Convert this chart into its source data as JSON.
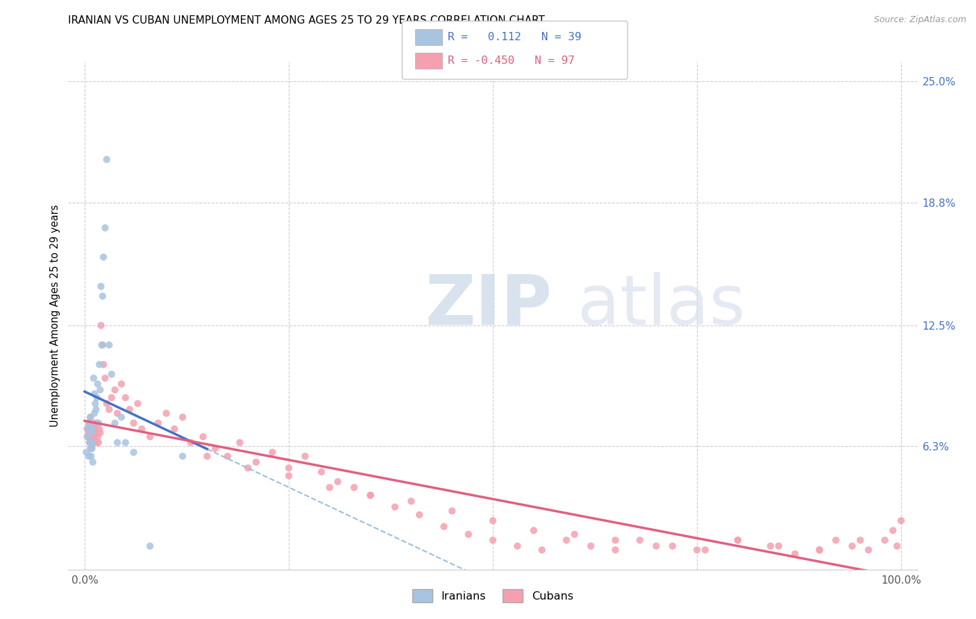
{
  "title": "IRANIAN VS CUBAN UNEMPLOYMENT AMONG AGES 25 TO 29 YEARS CORRELATION CHART",
  "source": "Source: ZipAtlas.com",
  "ylabel": "Unemployment Among Ages 25 to 29 years",
  "xlim": [
    0.0,
    1.0
  ],
  "ylim": [
    0.0,
    0.25
  ],
  "y_ticks_right": [
    0.25,
    0.188,
    0.125,
    0.063,
    0.0
  ],
  "y_tick_labels_right": [
    "25.0%",
    "18.8%",
    "12.5%",
    "6.3%",
    ""
  ],
  "iranian_color": "#a8c4e0",
  "cuban_color": "#f4a0b0",
  "iranian_line_color": "#4472c4",
  "cuban_line_color": "#e06080",
  "dashed_line_color": "#90b8d8",
  "legend_r_iranian": "0.112",
  "legend_n_iranian": "39",
  "legend_r_cuban": "-0.450",
  "legend_n_cuban": "97",
  "iranian_points_x": [
    0.002,
    0.003,
    0.004,
    0.005,
    0.006,
    0.006,
    0.007,
    0.007,
    0.008,
    0.008,
    0.009,
    0.009,
    0.01,
    0.01,
    0.011,
    0.012,
    0.012,
    0.013,
    0.014,
    0.015,
    0.016,
    0.017,
    0.018,
    0.019,
    0.02,
    0.021,
    0.022,
    0.023,
    0.025,
    0.027,
    0.03,
    0.033,
    0.037,
    0.04,
    0.045,
    0.05,
    0.06,
    0.08,
    0.12
  ],
  "iranian_points_y": [
    0.06,
    0.068,
    0.072,
    0.058,
    0.065,
    0.075,
    0.062,
    0.078,
    0.058,
    0.07,
    0.062,
    0.072,
    0.055,
    0.065,
    0.098,
    0.08,
    0.09,
    0.085,
    0.082,
    0.088,
    0.095,
    0.075,
    0.105,
    0.092,
    0.145,
    0.115,
    0.14,
    0.16,
    0.175,
    0.21,
    0.115,
    0.1,
    0.075,
    0.065,
    0.078,
    0.065,
    0.06,
    0.012,
    0.058
  ],
  "cuban_points_x": [
    0.003,
    0.004,
    0.005,
    0.005,
    0.006,
    0.006,
    0.007,
    0.007,
    0.008,
    0.008,
    0.009,
    0.01,
    0.01,
    0.011,
    0.012,
    0.012,
    0.013,
    0.014,
    0.015,
    0.016,
    0.017,
    0.018,
    0.019,
    0.02,
    0.022,
    0.023,
    0.025,
    0.027,
    0.03,
    0.033,
    0.037,
    0.04,
    0.045,
    0.05,
    0.055,
    0.06,
    0.065,
    0.07,
    0.08,
    0.09,
    0.1,
    0.11,
    0.12,
    0.13,
    0.145,
    0.16,
    0.175,
    0.19,
    0.21,
    0.23,
    0.25,
    0.27,
    0.29,
    0.31,
    0.33,
    0.35,
    0.38,
    0.41,
    0.44,
    0.47,
    0.5,
    0.53,
    0.56,
    0.59,
    0.62,
    0.65,
    0.68,
    0.72,
    0.76,
    0.8,
    0.84,
    0.87,
    0.9,
    0.92,
    0.94,
    0.96,
    0.98,
    0.99,
    0.995,
    1.0,
    0.15,
    0.2,
    0.25,
    0.3,
    0.35,
    0.4,
    0.45,
    0.5,
    0.55,
    0.6,
    0.65,
    0.7,
    0.75,
    0.8,
    0.85,
    0.9,
    0.95
  ],
  "cuban_points_y": [
    0.072,
    0.068,
    0.07,
    0.075,
    0.072,
    0.065,
    0.068,
    0.078,
    0.062,
    0.07,
    0.068,
    0.072,
    0.065,
    0.07,
    0.075,
    0.068,
    0.072,
    0.065,
    0.075,
    0.068,
    0.065,
    0.072,
    0.07,
    0.125,
    0.115,
    0.105,
    0.098,
    0.085,
    0.082,
    0.088,
    0.092,
    0.08,
    0.095,
    0.088,
    0.082,
    0.075,
    0.085,
    0.072,
    0.068,
    0.075,
    0.08,
    0.072,
    0.078,
    0.065,
    0.068,
    0.062,
    0.058,
    0.065,
    0.055,
    0.06,
    0.052,
    0.058,
    0.05,
    0.045,
    0.042,
    0.038,
    0.032,
    0.028,
    0.022,
    0.018,
    0.015,
    0.012,
    0.01,
    0.015,
    0.012,
    0.01,
    0.015,
    0.012,
    0.01,
    0.015,
    0.012,
    0.008,
    0.01,
    0.015,
    0.012,
    0.01,
    0.015,
    0.02,
    0.012,
    0.025,
    0.058,
    0.052,
    0.048,
    0.042,
    0.038,
    0.035,
    0.03,
    0.025,
    0.02,
    0.018,
    0.015,
    0.012,
    0.01,
    0.015,
    0.012,
    0.01,
    0.015
  ]
}
